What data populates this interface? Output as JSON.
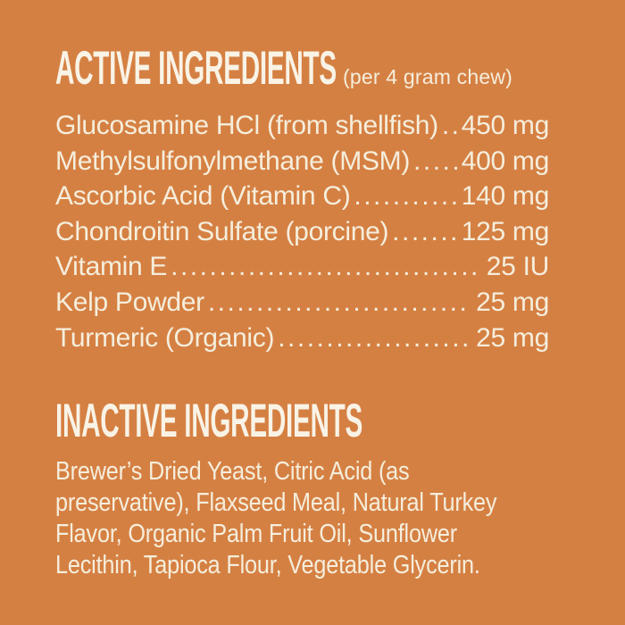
{
  "page": {
    "background_color": "#D58043",
    "text_color": "#F5EEDC",
    "headline_color": "#F9F3E6"
  },
  "active_section": {
    "title": "ACTIVE INGREDIENTS",
    "subtitle": "(per 4 gram chew)",
    "rows": [
      {
        "name": "Glucosamine HCl (from shellfish)",
        "value": "450 mg"
      },
      {
        "name": "Methylsulfonylmethane (MSM)",
        "value": "400 mg"
      },
      {
        "name": "Ascorbic Acid (Vitamin C)",
        "value": "140 mg"
      },
      {
        "name": "Chondroitin Sulfate (porcine)",
        "value": "125 mg"
      },
      {
        "name": "Vitamin E",
        "value": "25 IU"
      },
      {
        "name": "Kelp Powder",
        "value": "25 mg"
      },
      {
        "name": "Turmeric (Organic)",
        "value": "25 mg"
      }
    ]
  },
  "inactive_section": {
    "title": "INACTIVE INGREDIENTS",
    "lines": [
      "Brewer’s Dried Yeast, Citric Acid (as",
      "preservative), Flaxseed Meal, Natural Turkey",
      "Flavor, Organic Palm Fruit Oil, Sunflower",
      "Lecithin, Tapioca Flour, Vegetable Glycerin."
    ]
  }
}
